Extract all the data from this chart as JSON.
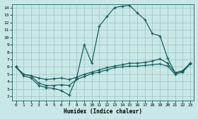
{
  "bg_color": "#c8e8e8",
  "grid_color": "#a0c0c0",
  "line_color": "#1a6060",
  "line_width": 0.9,
  "marker": "+",
  "marker_size": 3.5,
  "marker_lw": 0.9,
  "xlim": [
    -0.5,
    23.5
  ],
  "ylim": [
    1.5,
    14.5
  ],
  "xticks": [
    0,
    1,
    2,
    3,
    4,
    5,
    6,
    7,
    8,
    9,
    10,
    11,
    12,
    13,
    14,
    15,
    16,
    17,
    18,
    19,
    20,
    21,
    22,
    23
  ],
  "yticks": [
    2,
    3,
    4,
    5,
    6,
    7,
    8,
    9,
    10,
    11,
    12,
    13,
    14
  ],
  "xlabel": "Humidex (Indice chaleur)",
  "series": [
    {
      "x": [
        0,
        1,
        2,
        3,
        4,
        5,
        6,
        7,
        8,
        9,
        10,
        11,
        12,
        13,
        14,
        15,
        16,
        17,
        18,
        19,
        20,
        21,
        22,
        23
      ],
      "y": [
        6,
        4.8,
        4.5,
        3.5,
        3.2,
        3.1,
        2.8,
        2.2,
        4.5,
        9.0,
        6.5,
        11.5,
        12.8,
        14.0,
        14.2,
        14.3,
        13.3,
        12.4,
        10.5,
        10.2,
        7.2,
        5.2,
        5.4,
        6.5
      ]
    },
    {
      "x": [
        0,
        1,
        2,
        3,
        4,
        5,
        6,
        7,
        8,
        9,
        10,
        11,
        12,
        13,
        14,
        15,
        16,
        17,
        18,
        19,
        20,
        21,
        22,
        23
      ],
      "y": [
        6,
        5.0,
        4.8,
        4.5,
        4.3,
        4.4,
        4.5,
        4.3,
        4.6,
        5.0,
        5.3,
        5.6,
        5.9,
        6.1,
        6.3,
        6.5,
        6.5,
        6.6,
        6.8,
        7.1,
        6.5,
        5.2,
        5.5,
        6.5
      ]
    },
    {
      "x": [
        0,
        1,
        2,
        3,
        4,
        5,
        6,
        7,
        8,
        9,
        10,
        11,
        12,
        13,
        14,
        15,
        16,
        17,
        18,
        19,
        20,
        21,
        22,
        23
      ],
      "y": [
        6,
        5.0,
        4.8,
        3.8,
        3.5,
        3.5,
        3.6,
        3.5,
        4.3,
        4.7,
        5.1,
        5.3,
        5.6,
        5.9,
        6.0,
        6.1,
        6.1,
        6.2,
        6.3,
        6.4,
        6.1,
        5.0,
        5.3,
        6.4
      ]
    }
  ]
}
